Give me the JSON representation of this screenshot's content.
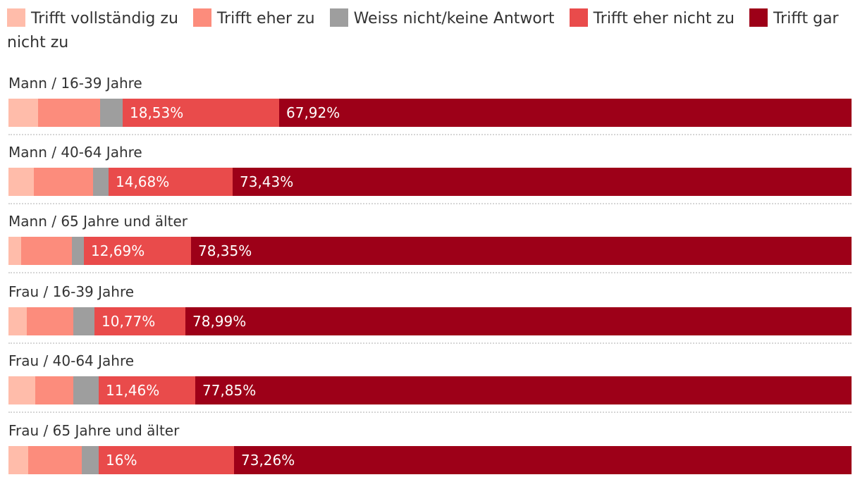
{
  "chart_data": {
    "type": "bar",
    "orientation": "horizontal",
    "stacked": true,
    "percent": true,
    "legend_position": "top",
    "legend": [
      {
        "name": "Trifft vollständig zu",
        "color": "#ffbcaa"
      },
      {
        "name": "Trifft eher zu",
        "color": "#fc8c7c"
      },
      {
        "name": "Weiss nicht/keine Antwort",
        "color": "#9e9e9e"
      },
      {
        "name": "Trifft eher nicht zu",
        "color": "#e94b4b"
      },
      {
        "name": "Trifft gar nicht zu",
        "color": "#9d0018"
      }
    ],
    "categories": [
      "Mann / 16-39 Jahre",
      "Mann / 40-64 Jahre",
      "Mann / 65 Jahre und älter",
      "Frau / 16-39 Jahre",
      "Frau / 40-64 Jahre",
      "Frau / 65 Jahre und älter"
    ],
    "series": [
      {
        "name": "Trifft vollständig zu",
        "values": [
          3.5,
          3.0,
          1.5,
          2.2,
          3.2,
          2.3
        ]
      },
      {
        "name": "Trifft eher zu",
        "values": [
          7.4,
          7.0,
          6.0,
          5.5,
          4.5,
          6.4
        ]
      },
      {
        "name": "Weiss nicht/keine Antwort",
        "values": [
          2.65,
          1.89,
          1.46,
          2.54,
          2.99,
          2.04
        ]
      },
      {
        "name": "Trifft eher nicht zu",
        "values": [
          18.53,
          14.68,
          12.69,
          10.77,
          11.46,
          16
        ]
      },
      {
        "name": "Trifft gar nicht zu",
        "values": [
          67.92,
          73.43,
          78.35,
          78.99,
          77.85,
          73.26
        ]
      }
    ],
    "value_labels": [
      [
        "",
        "",
        "",
        "18,53%",
        "67,92%"
      ],
      [
        "",
        "",
        "",
        "14,68%",
        "73,43%"
      ],
      [
        "",
        "",
        "",
        "12,69%",
        "78,35%"
      ],
      [
        "",
        "",
        "",
        "10,77%",
        "78,99%"
      ],
      [
        "",
        "",
        "",
        "11,46%",
        "77,85%"
      ],
      [
        "",
        "",
        "",
        "16%",
        "73,26%"
      ]
    ],
    "xlim": [
      0,
      100
    ]
  }
}
